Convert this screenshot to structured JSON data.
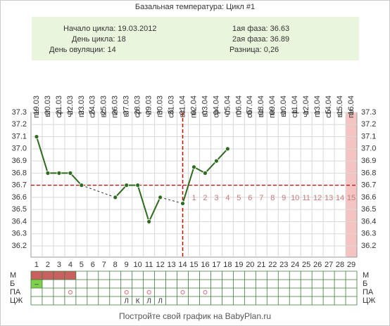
{
  "title": "Базальная температура: Цикл #1",
  "info": {
    "left": [
      {
        "label": "Начало цикла:",
        "value": "19.03.2012"
      },
      {
        "label": "День цикла:",
        "value": 18
      },
      {
        "label": "День овуляции:",
        "value": 14
      }
    ],
    "right": [
      {
        "label": "1ая фаза:",
        "value": 36.63
      },
      {
        "label": "2ая фаза:",
        "value": 36.89
      },
      {
        "label": "Разница:",
        "value": "0,26"
      }
    ]
  },
  "chart_data": {
    "type": "line",
    "categories": [
      "19.03",
      "20.03",
      "21.03",
      "22.03",
      "23.03",
      "24.03",
      "25.03",
      "26.03",
      "27.03",
      "28.03",
      "29.03",
      "30.03",
      "31.03",
      "01.04",
      "02.04",
      "03.04",
      "04.04",
      "05.04",
      "06.04",
      "07.04",
      "08.04",
      "09.04",
      "10.04",
      "11.04",
      "12.04",
      "13.04",
      "14.04",
      "15.04",
      "16.04"
    ],
    "weekdays": [
      "пн",
      "вт",
      "ср",
      "чт",
      "пт",
      "сб",
      "вс",
      "пн",
      "вт",
      "ср",
      "чт",
      "пт",
      "сб",
      "вс",
      "пн",
      "вт",
      "ср",
      "чт",
      "пт",
      "сб",
      "вс",
      "пн",
      "вт",
      "ср",
      "чт",
      "пт",
      "сб",
      "вс",
      "пн"
    ],
    "day_numbers": [
      1,
      2,
      3,
      4,
      5,
      6,
      7,
      8,
      9,
      10,
      11,
      12,
      13,
      14,
      15,
      16,
      17,
      18,
      19,
      20,
      21,
      22,
      23,
      24,
      25,
      26,
      27,
      28,
      29
    ],
    "values": [
      37.1,
      36.8,
      36.8,
      36.8,
      36.7,
      null,
      null,
      36.6,
      36.7,
      36.7,
      36.4,
      36.6,
      null,
      36.55,
      36.85,
      36.8,
      36.9,
      37.0,
      null,
      null,
      null,
      null,
      null,
      null,
      null,
      null,
      null,
      null,
      null
    ],
    "luteal_days": [
      1,
      2,
      3,
      4,
      5,
      6,
      7,
      8,
      9,
      10,
      11,
      12,
      13,
      14,
      15
    ],
    "color": "#2e6b1e",
    "coverline": 36.7,
    "highlight_day": 29,
    "ylim": [
      36.2,
      37.3
    ],
    "yticks": [
      37.3,
      37.2,
      37.1,
      {
        "value": 37.0,
        "label": "37.0"
      },
      36.9,
      36.8,
      36.7,
      36.6,
      36.5,
      36.4,
      36.3,
      36.2
    ],
    "grid": true
  },
  "rows": [
    {
      "label": "М",
      "filled_days": [
        1,
        2,
        3,
        4
      ],
      "color": "#c86060"
    },
    {
      "label": "Б",
      "cells": [
        {
          "day": 1,
          "text": "–"
        }
      ],
      "color": "#7fd04a"
    },
    {
      "label": "ПА",
      "circle_days": [
        4,
        9,
        11,
        14,
        16
      ]
    },
    {
      "label": "ЦЖ",
      "cells": [
        {
          "day": 9,
          "text": "Л"
        },
        {
          "day": 10,
          "text": "К"
        },
        {
          "day": 11,
          "text": "Л"
        },
        {
          "day": 12,
          "text": "Л"
        }
      ]
    }
  ],
  "footer": "Постройте свой график на BabyPlan.ru"
}
